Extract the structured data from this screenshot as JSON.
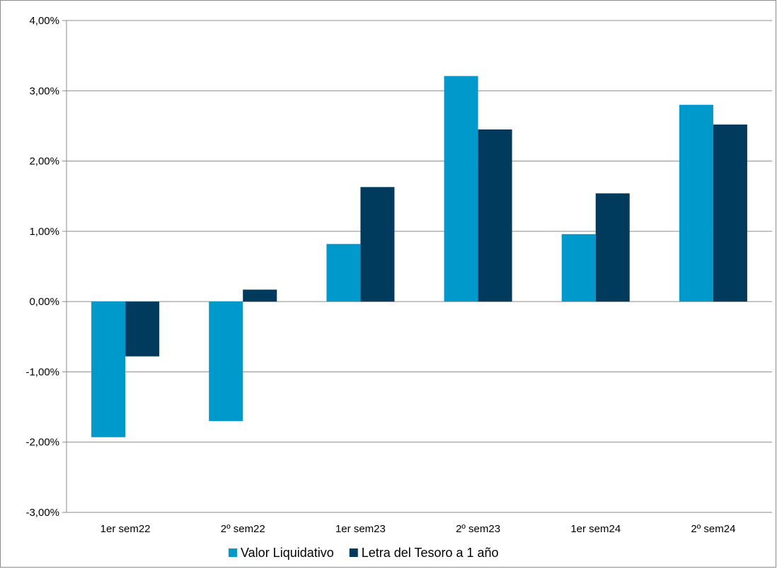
{
  "chart_data": {
    "type": "bar",
    "categories": [
      "1er sem22",
      "2º sem22",
      "1er sem23",
      "2º sem23",
      "1er sem24",
      "2º sem24"
    ],
    "series": [
      {
        "name": "Valor Liquidativo",
        "values": [
          -1.93,
          -1.7,
          0.82,
          3.21,
          0.96,
          2.8
        ],
        "color": "#0099cc"
      },
      {
        "name": "Letra del Tesoro a 1 año",
        "values": [
          -0.78,
          0.17,
          1.63,
          2.45,
          1.54,
          2.52
        ],
        "color": "#003a5d"
      }
    ],
    "yticks": [
      "4,00%",
      "3,00%",
      "2,00%",
      "1,00%",
      "0,00%",
      "-1,00%",
      "-2,00%",
      "-3,00%"
    ],
    "ylim": [
      -3,
      4
    ],
    "grid": true,
    "legend_position": "bottom"
  }
}
